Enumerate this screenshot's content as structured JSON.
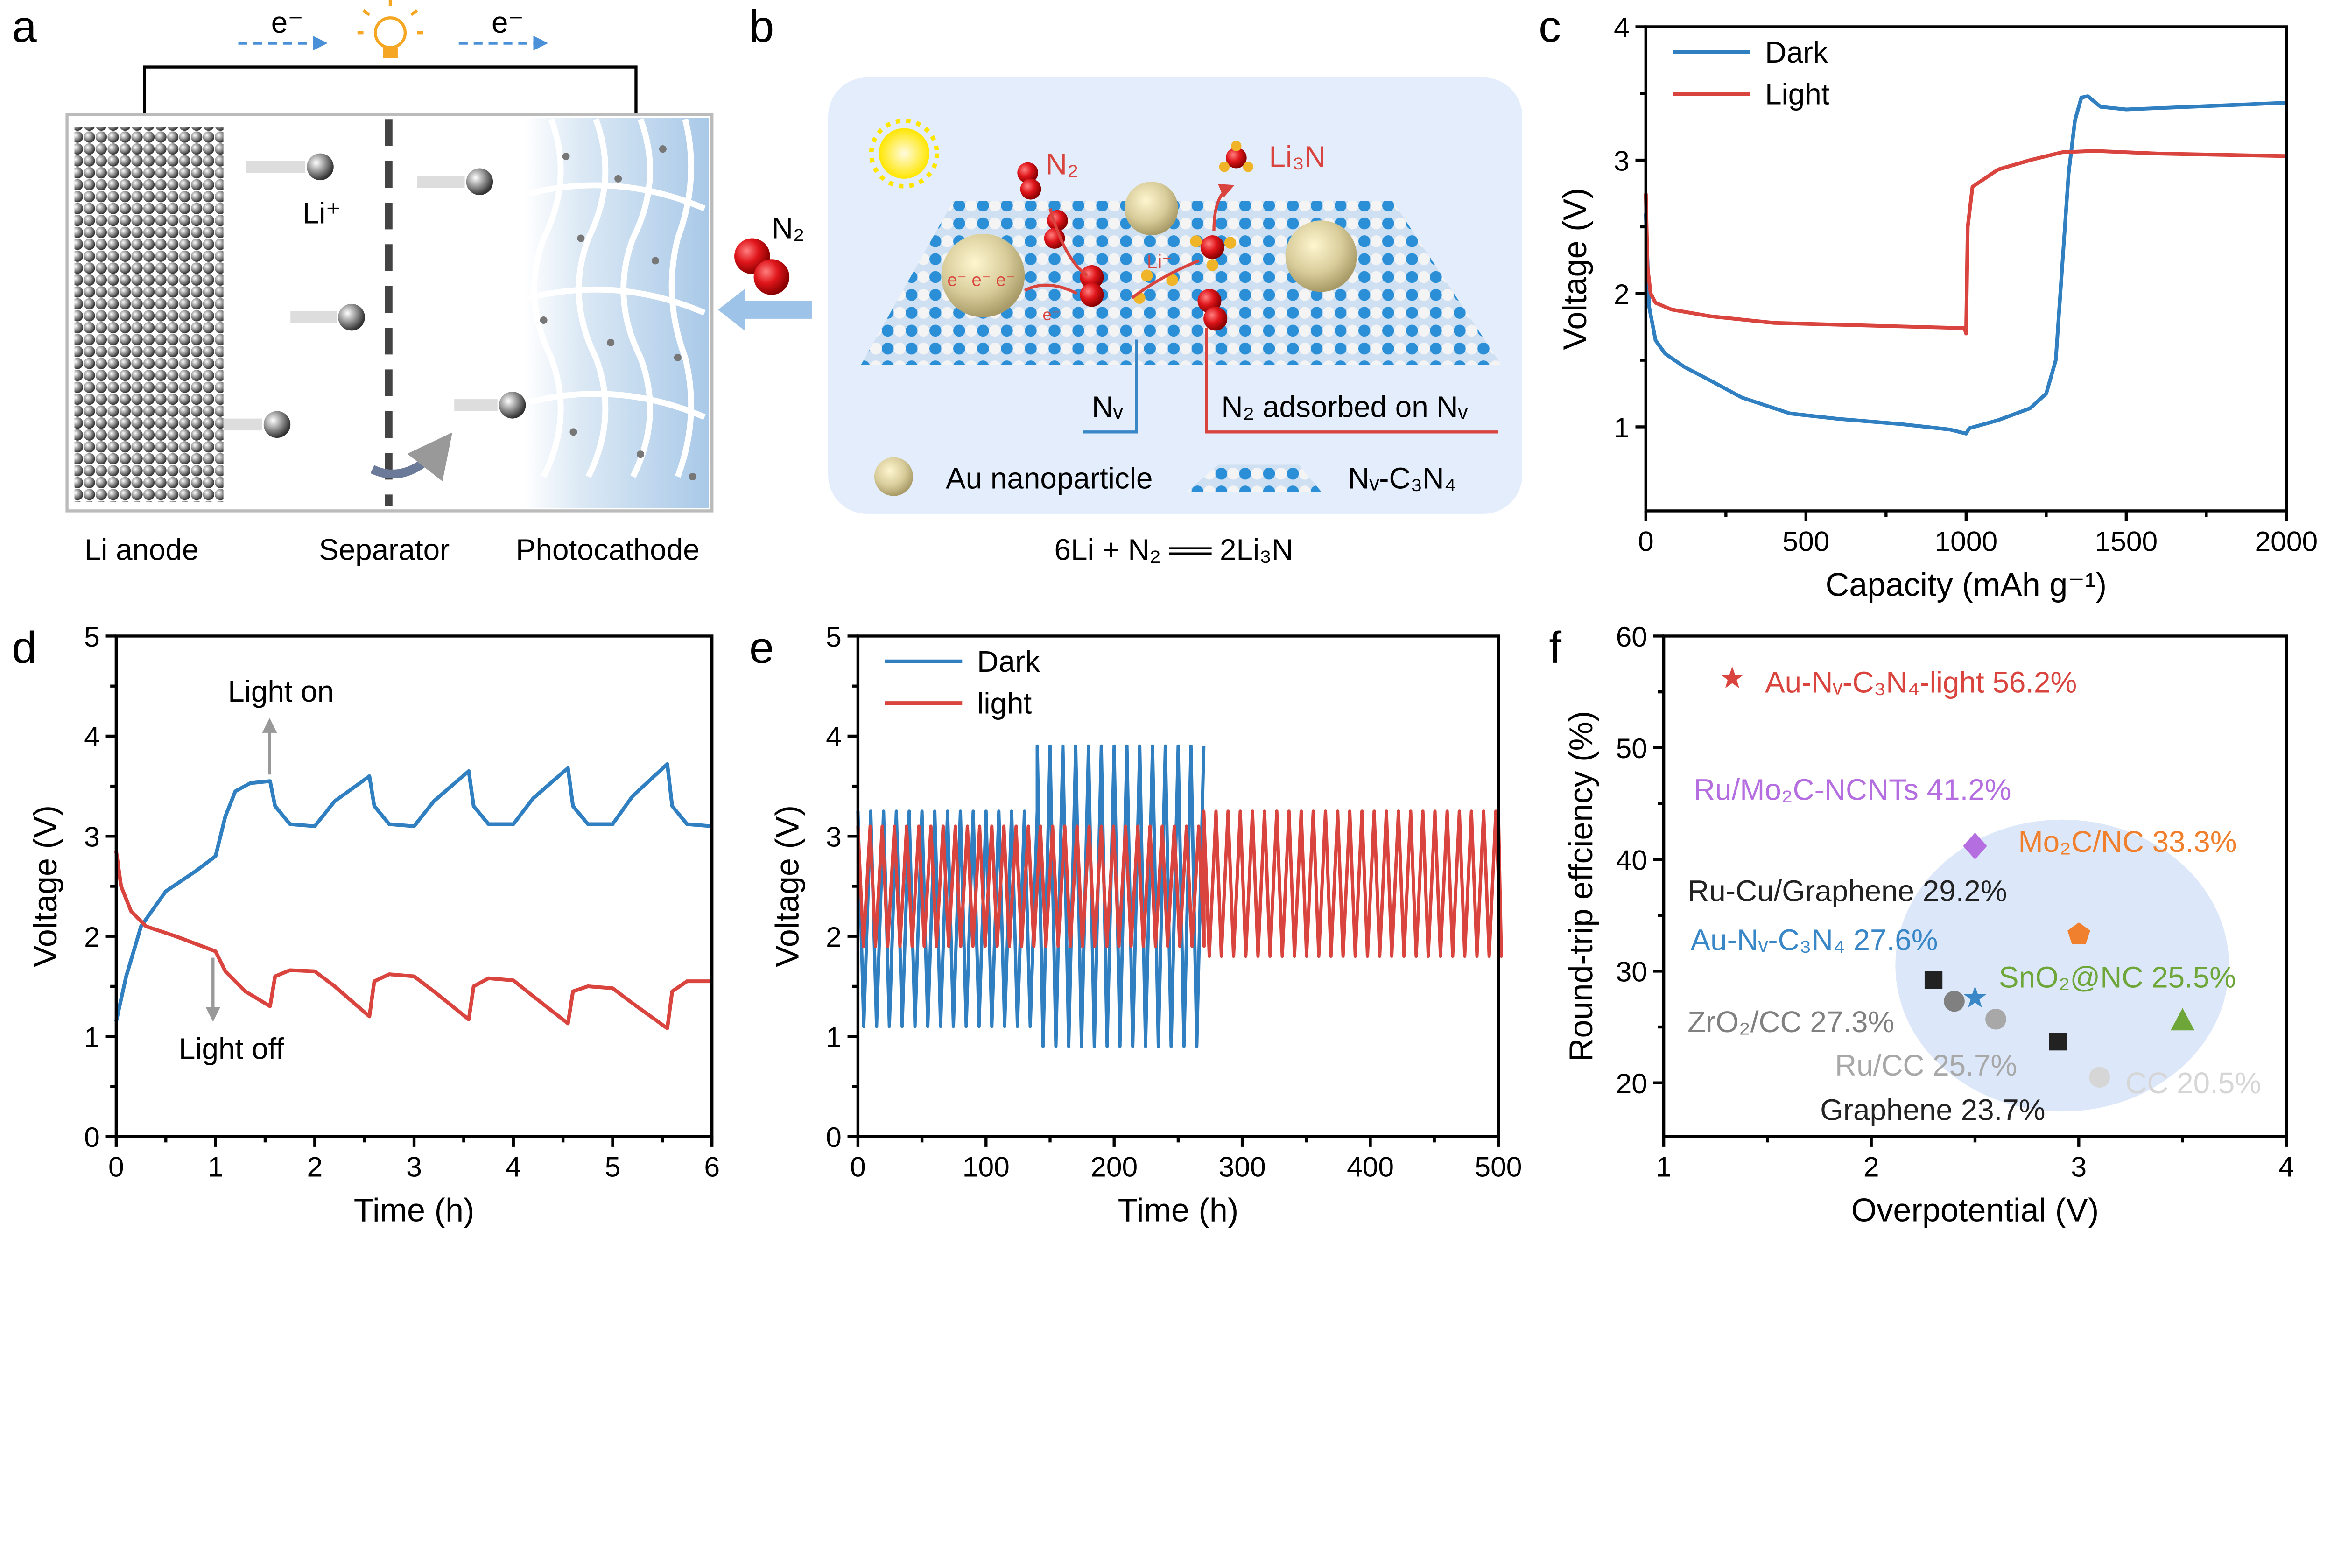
{
  "panels": {
    "a": "a",
    "b": "b",
    "c": "c",
    "d": "d",
    "e": "e",
    "f": "f"
  },
  "schematic_a": {
    "electron_left": "e⁻",
    "electron_right": "e⁻",
    "li_ion": "Li⁺",
    "n2": "N₂",
    "li_anode": "Li anode",
    "separator": "Separator",
    "photocathode": "Photocathode",
    "colors": {
      "cathode": "#bcd6ee",
      "electron_arrow": "#4a90d9",
      "n2": "#e0161b"
    }
  },
  "schematic_b": {
    "n2": "N₂",
    "li3n": "Li₃N",
    "li_plus": "Li⁺",
    "electrons": "e⁻ e⁻ e⁻",
    "electron": "e⁻",
    "nv": "Nᵥ",
    "n2_adsorbed": "N₂ adsorbed on Nᵥ",
    "legend_au": "Au nanoparticle",
    "legend_c3n4": "Nᵥ-C₃N₄",
    "equation": "6Li + N₂ ══ 2Li₃N",
    "colors": {
      "background": "#e3edfb",
      "lattice_blue": "#2a8fd6",
      "gold": "#d8cc9a",
      "n": "#e0161b"
    }
  },
  "chart_data": [
    {
      "type": "line",
      "xlabel": "Capacity (mAh g⁻¹)",
      "ylabel": "Voltage (V)",
      "xlim": [
        0,
        2000
      ],
      "ylim": [
        0.37,
        4.0
      ],
      "xticks": [
        "0",
        "500",
        "1000",
        "1500",
        "2000"
      ],
      "yticks": [
        "1",
        "2",
        "3",
        "4"
      ],
      "legend": "top-left",
      "series": [
        {
          "name": "Dark",
          "color": "#2f7fc1",
          "x": [
            0,
            10,
            30,
            60,
            120,
            200,
            300,
            450,
            600,
            800,
            950,
            1000,
            1010,
            1100,
            1200,
            1250,
            1280,
            1300,
            1320,
            1340,
            1360,
            1380,
            1420,
            1500,
            1700,
            2000
          ],
          "y": [
            2.6,
            1.9,
            1.65,
            1.55,
            1.45,
            1.35,
            1.22,
            1.1,
            1.06,
            1.02,
            0.98,
            0.95,
            0.99,
            1.05,
            1.14,
            1.25,
            1.5,
            2.2,
            2.9,
            3.3,
            3.47,
            3.48,
            3.4,
            3.38,
            3.4,
            3.43
          ]
        },
        {
          "name": "Light",
          "color": "#d9453e",
          "x": [
            0,
            5,
            15,
            30,
            80,
            200,
            400,
            700,
            995,
            1000,
            1005,
            1020,
            1100,
            1200,
            1300,
            1400,
            1600,
            2000
          ],
          "y": [
            2.75,
            2.2,
            2.0,
            1.93,
            1.88,
            1.83,
            1.78,
            1.76,
            1.74,
            1.7,
            2.5,
            2.8,
            2.93,
            3.0,
            3.06,
            3.07,
            3.05,
            3.03
          ]
        }
      ]
    },
    {
      "type": "line",
      "xlabel": "Time (h)",
      "ylabel": "Voltage (V)",
      "xlim": [
        0,
        6
      ],
      "ylim": [
        0,
        5
      ],
      "xticks": [
        "0",
        "1",
        "2",
        "3",
        "4",
        "5",
        "6"
      ],
      "yticks": [
        "0",
        "1",
        "2",
        "3",
        "4",
        "5"
      ],
      "annotations": [
        "Light on",
        "Light off"
      ],
      "series": [
        {
          "color": "#2f7fc1",
          "x": [
            0,
            0.1,
            0.25,
            0.5,
            0.8,
            1.0,
            1.1,
            1.2,
            1.35,
            1.55,
            1.6,
            1.75,
            2.0,
            2.2,
            2.55,
            2.6,
            2.75,
            3.0,
            3.2,
            3.55,
            3.6,
            3.75,
            4.0,
            4.2,
            4.55,
            4.6,
            4.75,
            5.0,
            5.2,
            5.55,
            5.6,
            5.75,
            6.0
          ],
          "y": [
            1.15,
            1.6,
            2.1,
            2.45,
            2.65,
            2.8,
            3.2,
            3.45,
            3.53,
            3.55,
            3.3,
            3.12,
            3.1,
            3.35,
            3.6,
            3.3,
            3.12,
            3.1,
            3.35,
            3.65,
            3.3,
            3.12,
            3.12,
            3.38,
            3.68,
            3.3,
            3.12,
            3.12,
            3.4,
            3.72,
            3.3,
            3.12,
            3.1
          ]
        },
        {
          "color": "#d9453e",
          "x": [
            0,
            0.05,
            0.15,
            0.3,
            0.6,
            1.0,
            1.1,
            1.3,
            1.55,
            1.6,
            1.75,
            2.0,
            2.2,
            2.55,
            2.6,
            2.75,
            3.0,
            3.2,
            3.55,
            3.6,
            3.75,
            4.0,
            4.2,
            4.55,
            4.6,
            4.75,
            5.0,
            5.2,
            5.55,
            5.6,
            5.75,
            6.0
          ],
          "y": [
            2.85,
            2.5,
            2.25,
            2.1,
            2.0,
            1.85,
            1.65,
            1.45,
            1.3,
            1.6,
            1.66,
            1.65,
            1.5,
            1.2,
            1.55,
            1.62,
            1.6,
            1.45,
            1.17,
            1.5,
            1.58,
            1.56,
            1.4,
            1.13,
            1.45,
            1.5,
            1.48,
            1.33,
            1.08,
            1.45,
            1.55,
            1.55
          ]
        }
      ]
    },
    {
      "type": "line",
      "xlabel": "Time (h)",
      "ylabel": "Voltage (V)",
      "xlim": [
        0,
        500
      ],
      "ylim": [
        0,
        5
      ],
      "xticks": [
        "0",
        "100",
        "200",
        "300",
        "400",
        "500"
      ],
      "yticks": [
        "0",
        "1",
        "2",
        "3",
        "4",
        "5"
      ],
      "legend": "top-left",
      "series": [
        {
          "name": "Dark",
          "color": "#2f7fc1",
          "cycle_period_h": 10,
          "segments": [
            {
              "from": 0,
              "to": 140,
              "min": 1.1,
              "max": 3.25
            },
            {
              "from": 140,
              "to": 270,
              "min": 0.9,
              "max": 3.9
            }
          ]
        },
        {
          "name": "light",
          "color": "#d9453e",
          "cycle_period_h": 9.5,
          "segments": [
            {
              "from": 0,
              "to": 270,
              "min": 1.9,
              "max": 3.1
            },
            {
              "from": 270,
              "to": 500,
              "min": 1.8,
              "max": 3.25
            }
          ]
        }
      ]
    },
    {
      "type": "scatter",
      "xlabel": "Overpotential (V)",
      "ylabel": "Round-trip effciency (%)",
      "xlim": [
        1,
        4
      ],
      "ylim": [
        15.2,
        60
      ],
      "xticks": [
        "1",
        "2",
        "3",
        "4"
      ],
      "yticks": [
        "20",
        "30",
        "40",
        "50",
        "60"
      ],
      "highlight_color": "#dce7fa",
      "points": [
        {
          "label": "Au-Nᵥ-C₃N₄-light 56.2%",
          "x": 1.33,
          "y": 56.2,
          "marker": "star",
          "color": "#d9453e"
        },
        {
          "label": "Ru/Mo₂C-NCNTs 41.2%",
          "x": 2.5,
          "y": 41.2,
          "marker": "diamond",
          "color": "#b56ee0"
        },
        {
          "label": "Mo₂C/NC 33.3%",
          "x": 3.0,
          "y": 33.3,
          "marker": "pentagon",
          "color": "#f07f2e"
        },
        {
          "label": "Ru-Cu/Graphene 29.2%",
          "x": 2.3,
          "y": 29.2,
          "marker": "square",
          "color": "#222222"
        },
        {
          "label": "Au-Nᵥ-C₃N₄ 27.6%",
          "x": 2.5,
          "y": 27.6,
          "marker": "star",
          "color": "#3a87c8"
        },
        {
          "label": "SnO₂@NC 25.5%",
          "x": 3.5,
          "y": 25.5,
          "marker": "triangle",
          "color": "#6ea63a"
        },
        {
          "label": "ZrO₂/CC 27.3%",
          "x": 2.4,
          "y": 27.3,
          "marker": "circle",
          "color": "#808080"
        },
        {
          "label": "Ru/CC 25.7%",
          "x": 2.6,
          "y": 25.7,
          "marker": "circle",
          "color": "#a8a8a8"
        },
        {
          "label": "CC 20.5%",
          "x": 3.1,
          "y": 20.5,
          "marker": "circle",
          "color": "#d6d6d6"
        },
        {
          "label": "Graphene 23.7%",
          "x": 2.9,
          "y": 23.7,
          "marker": "square",
          "color": "#222222"
        }
      ]
    }
  ]
}
